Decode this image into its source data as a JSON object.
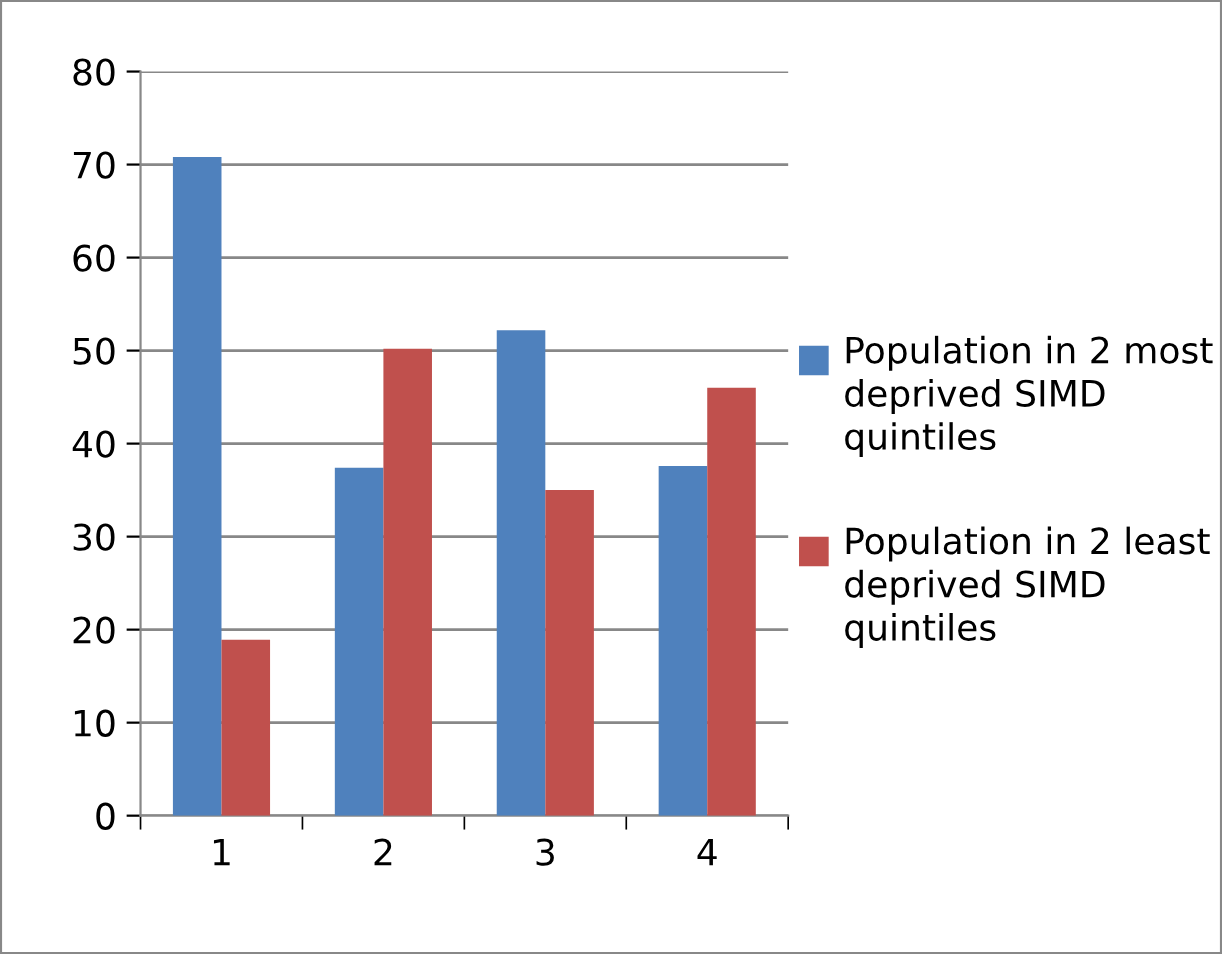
{
  "chart_data": {
    "type": "bar",
    "categories": [
      "1",
      "2",
      "3",
      "4"
    ],
    "series": [
      {
        "name": "Population in 2 most deprived SIMD quintiles",
        "color": "#4f81bd",
        "values": [
          70.8,
          37.4,
          52.2,
          37.6
        ]
      },
      {
        "name": "Population in 2 least deprived SIMD quintiles",
        "color": "#c0504d",
        "values": [
          18.9,
          50.2,
          35.0,
          46.0
        ]
      }
    ],
    "ylim": [
      0,
      80
    ],
    "yticks": [
      0,
      10,
      20,
      30,
      40,
      50,
      60,
      70,
      80
    ],
    "grid": "y",
    "legend": "right"
  }
}
